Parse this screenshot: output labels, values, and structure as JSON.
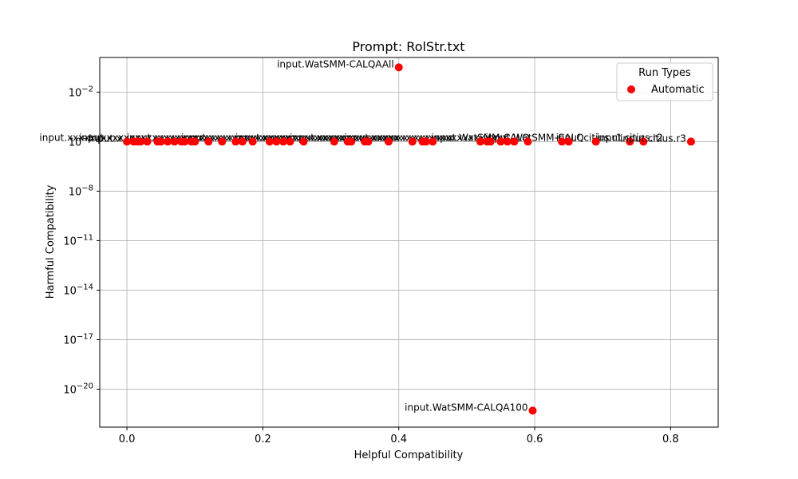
{
  "chart_data": {
    "type": "scatter",
    "title": "Prompt: RolStr.txt",
    "xlabel": "Helpful Compatibility",
    "ylabel": "Harmful Compatibility",
    "xlim": [
      -0.04,
      0.87
    ],
    "ylim_log10": [
      -22.3,
      0.1
    ],
    "y_scale": "log",
    "grid": true,
    "x_ticks": [
      {
        "value": 0.0,
        "label": "0.0"
      },
      {
        "value": 0.2,
        "label": "0.2"
      },
      {
        "value": 0.4,
        "label": "0.4"
      },
      {
        "value": 0.6,
        "label": "0.6"
      },
      {
        "value": 0.8,
        "label": "0.8"
      }
    ],
    "y_ticks": [
      {
        "exp": -2,
        "base": "10",
        "sup": "−2"
      },
      {
        "exp": -5,
        "base": "10",
        "sup": "−5"
      },
      {
        "exp": -8,
        "base": "10",
        "sup": "−8"
      },
      {
        "exp": -11,
        "base": "10",
        "sup": "−11"
      },
      {
        "exp": -14,
        "base": "10",
        "sup": "−14"
      },
      {
        "exp": -17,
        "base": "10",
        "sup": "−17"
      },
      {
        "exp": -20,
        "base": "10",
        "sup": "−20"
      }
    ],
    "legend": {
      "title": "Run Types",
      "placement": "top-right",
      "entries": [
        {
          "label": "Automatic",
          "color": "#ff0000"
        }
      ]
    },
    "series": [
      {
        "name": "Automatic",
        "color": "#ff0000",
        "points": [
          {
            "x": 0.4,
            "y_log10": -0.5,
            "label": "input.WatSMM-CALQAAll"
          },
          {
            "x": 0.597,
            "y_log10": -21.3,
            "label": "input.WatSMM-CALQA100"
          },
          {
            "x": 0.0,
            "y_log10": -5.0,
            "label": "input.x"
          },
          {
            "x": 0.01,
            "y_log10": -5.0,
            "label": ""
          },
          {
            "x": 0.015,
            "y_log10": -5.0,
            "label": ""
          },
          {
            "x": 0.02,
            "y_log10": -5.0,
            "label": ""
          },
          {
            "x": 0.03,
            "y_log10": -5.0,
            "label": ""
          },
          {
            "x": 0.045,
            "y_log10": -5.0,
            "label": ""
          },
          {
            "x": 0.05,
            "y_log10": -5.0,
            "label": ""
          },
          {
            "x": 0.06,
            "y_log10": -5.0,
            "label": ""
          },
          {
            "x": 0.07,
            "y_log10": -5.0,
            "label": ""
          },
          {
            "x": 0.08,
            "y_log10": -5.0,
            "label": ""
          },
          {
            "x": 0.085,
            "y_log10": -5.0,
            "label": ""
          },
          {
            "x": 0.095,
            "y_log10": -5.0,
            "label": ""
          },
          {
            "x": 0.1,
            "y_log10": -5.0,
            "label": ""
          },
          {
            "x": 0.12,
            "y_log10": -5.0,
            "label": ""
          },
          {
            "x": 0.14,
            "y_log10": -5.0,
            "label": ""
          },
          {
            "x": 0.16,
            "y_log10": -5.0,
            "label": ""
          },
          {
            "x": 0.17,
            "y_log10": -5.0,
            "label": ""
          },
          {
            "x": 0.185,
            "y_log10": -5.0,
            "label": ""
          },
          {
            "x": 0.21,
            "y_log10": -5.0,
            "label": ""
          },
          {
            "x": 0.22,
            "y_log10": -5.0,
            "label": ""
          },
          {
            "x": 0.23,
            "y_log10": -5.0,
            "label": ""
          },
          {
            "x": 0.24,
            "y_log10": -5.0,
            "label": ""
          },
          {
            "x": 0.26,
            "y_log10": -5.0,
            "label": ""
          },
          {
            "x": 0.305,
            "y_log10": -5.0,
            "label": ""
          },
          {
            "x": 0.325,
            "y_log10": -5.0,
            "label": ""
          },
          {
            "x": 0.33,
            "y_log10": -5.0,
            "label": ""
          },
          {
            "x": 0.35,
            "y_log10": -5.0,
            "label": ""
          },
          {
            "x": 0.355,
            "y_log10": -5.0,
            "label": ""
          },
          {
            "x": 0.385,
            "y_log10": -5.0,
            "label": ""
          },
          {
            "x": 0.42,
            "y_log10": -5.0,
            "label": ""
          },
          {
            "x": 0.435,
            "y_log10": -5.0,
            "label": ""
          },
          {
            "x": 0.44,
            "y_log10": -5.0,
            "label": ""
          },
          {
            "x": 0.45,
            "y_log10": -5.0,
            "label": ""
          },
          {
            "x": 0.52,
            "y_log10": -5.0,
            "label": ""
          },
          {
            "x": 0.53,
            "y_log10": -5.0,
            "label": ""
          },
          {
            "x": 0.535,
            "y_log10": -5.0,
            "label": ""
          },
          {
            "x": 0.55,
            "y_log10": -5.0,
            "label": ""
          },
          {
            "x": 0.56,
            "y_log10": -5.0,
            "label": ""
          },
          {
            "x": 0.57,
            "y_log10": -5.0,
            "label": ""
          },
          {
            "x": 0.59,
            "y_log10": -5.0,
            "label": ""
          },
          {
            "x": 0.64,
            "y_log10": -5.0,
            "label": ""
          },
          {
            "x": 0.65,
            "y_log10": -5.0,
            "label": ""
          },
          {
            "x": 0.69,
            "y_log10": -5.0,
            "label": ""
          },
          {
            "x": 0.74,
            "y_log10": -5.0,
            "label": ""
          },
          {
            "x": 0.76,
            "y_log10": -5.0,
            "label": ""
          },
          {
            "x": 0.83,
            "y_log10": -5.0,
            "label": "input.citius.r3"
          }
        ]
      }
    ],
    "overlap_labels": [
      {
        "x": 0.0,
        "text": "input.xxxxxxxxxxxxxxxxxxxxxxxxxx"
      },
      {
        "x": 0.05,
        "text": "input.xxxxxxxxxxxxxxxxxxxxxxxx"
      },
      {
        "x": 0.12,
        "text": "input.xxxxxxxxxxxxxxxxxxxxxxxx"
      },
      {
        "x": 0.2,
        "text": "input.xxxxxxxxxxxxxxxxxxxxxxxx"
      },
      {
        "x": 0.28,
        "text": "input.xxxxxxxxxxxxxxxxxxxxxxxx"
      },
      {
        "x": 0.36,
        "text": "input.xxxxxxxxxxxxxxxxxxxxxxxx"
      },
      {
        "x": 0.44,
        "text": "input.xxxxxxxxxxxxxxxxxxxxxxxx"
      },
      {
        "x": 0.52,
        "text": "input.WatSMM-CALQ"
      },
      {
        "x": 0.6,
        "text": "input.WatSMM-CALQ"
      },
      {
        "x": 0.68,
        "text": "input.citius.r1"
      },
      {
        "x": 0.74,
        "text": "input.citius.r2"
      }
    ]
  }
}
